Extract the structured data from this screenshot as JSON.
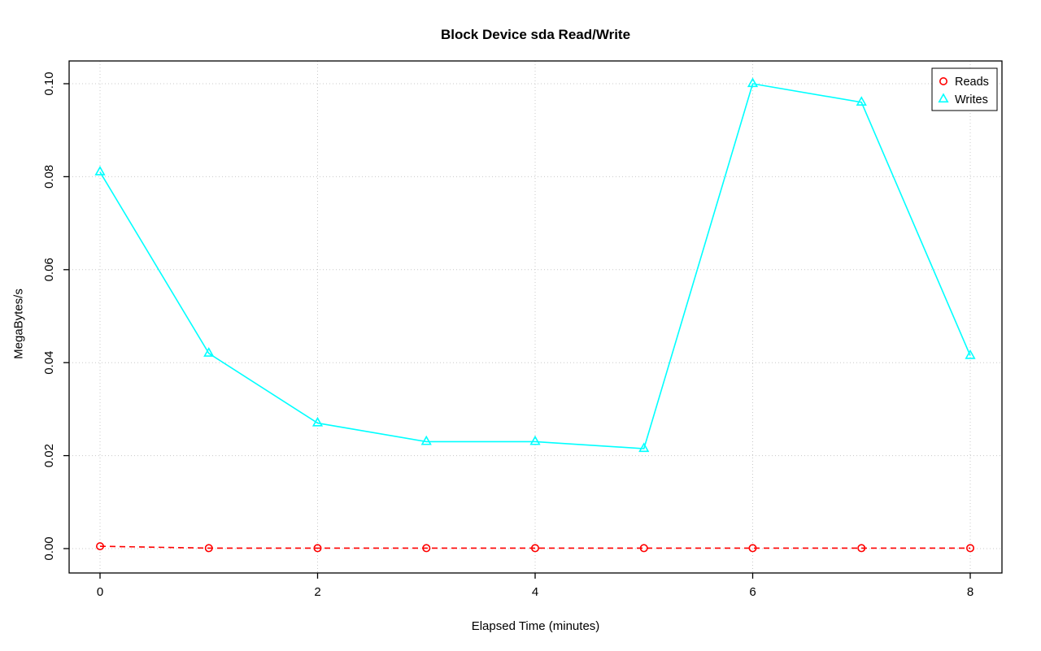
{
  "title": "Block Device sda Read/Write",
  "axes": {
    "xlabel": "Elapsed Time (minutes)",
    "ylabel": "MegaBytes/s"
  },
  "legend": {
    "items": [
      "Reads",
      "Writes"
    ]
  },
  "colors": {
    "reads": "#ff0000",
    "writes": "#00ffff",
    "grid": "#c8c8c8",
    "axis": "#000000",
    "background": "#ffffff"
  },
  "chart_data": {
    "type": "line",
    "title": "Block Device sda Read/Write",
    "xlabel": "Elapsed Time (minutes)",
    "ylabel": "MegaBytes/s",
    "x": [
      0,
      1,
      2,
      3,
      4,
      5,
      6,
      7,
      8
    ],
    "series": [
      {
        "name": "Reads",
        "color": "#ff0000",
        "marker": "circle",
        "line_style": "dashed",
        "values": [
          0.0005,
          0.0001,
          0.0001,
          0.0001,
          0.0001,
          0.0001,
          0.0001,
          0.0001,
          0.0001
        ]
      },
      {
        "name": "Writes",
        "color": "#00ffff",
        "marker": "triangle",
        "line_style": "solid",
        "values": [
          0.081,
          0.042,
          0.027,
          0.023,
          0.023,
          0.0215,
          0.1,
          0.096,
          0.0415
        ]
      }
    ],
    "xlim": [
      0,
      8
    ],
    "ylim": [
      0,
      0.1
    ],
    "xticks": [
      0,
      2,
      4,
      6,
      8
    ],
    "yticks": [
      0,
      0.02,
      0.04,
      0.06,
      0.08,
      0.1
    ],
    "ytick_format_decimals": 2,
    "grid": true,
    "grid_style": "dotted",
    "legend_position": "top-right"
  }
}
